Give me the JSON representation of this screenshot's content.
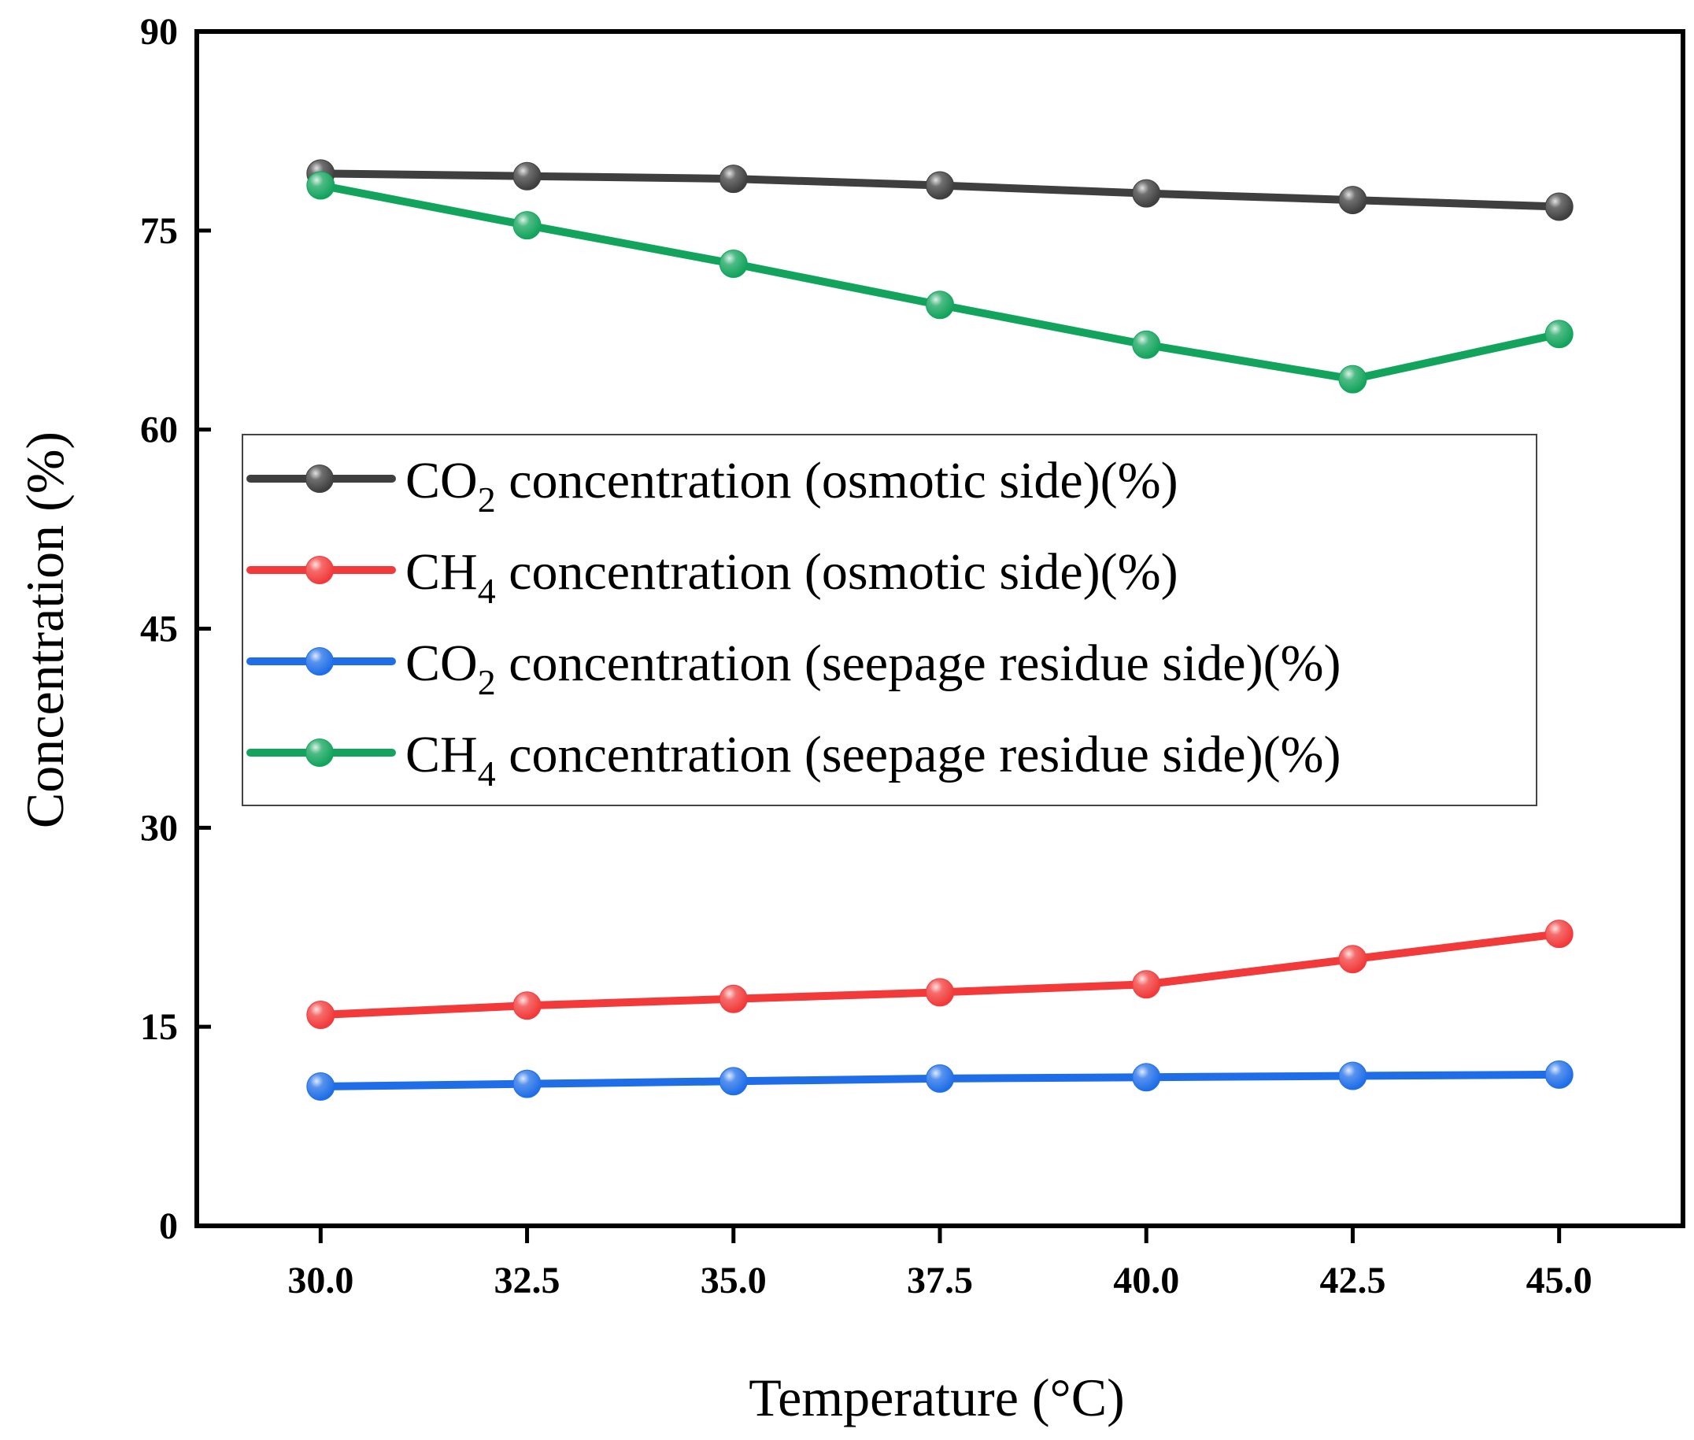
{
  "chart_data": {
    "type": "line",
    "title": "",
    "xlabel": "Temperature (°C)",
    "ylabel": "Concentration (%)",
    "x": [
      30.0,
      32.5,
      35.0,
      37.5,
      40.0,
      42.5,
      45.0
    ],
    "x_tick_labels": [
      "30.0",
      "32.5",
      "35.0",
      "37.5",
      "40.0",
      "42.5",
      "45.0"
    ],
    "xlim": [
      28.5,
      46.5
    ],
    "ylim": [
      0,
      90
    ],
    "y_ticks": [
      0,
      15,
      30,
      45,
      60,
      75,
      90
    ],
    "y_tick_labels": [
      "0",
      "15",
      "30",
      "45",
      "60",
      "75",
      "90"
    ],
    "grid": false,
    "legend_position": "middle-left",
    "series": [
      {
        "name_main": "CO",
        "name_sub": "2",
        "name_rest": " concentration (osmotic side)(%)",
        "color": "#3f3f3f",
        "values": [
          79.3,
          79.1,
          78.9,
          78.4,
          77.8,
          77.3,
          76.8
        ]
      },
      {
        "name_main": "CH",
        "name_sub": "4",
        "name_rest": " concentration (osmotic side)(%)",
        "color": "#f23a3a",
        "values": [
          15.9,
          16.6,
          17.1,
          17.6,
          18.2,
          20.1,
          22.0
        ]
      },
      {
        "name_main": "CO",
        "name_sub": "2",
        "name_rest": " concentration (seepage residue side)(%)",
        "color": "#1f6ee8",
        "values": [
          10.5,
          10.7,
          10.9,
          11.1,
          11.2,
          11.3,
          11.4
        ]
      },
      {
        "name_main": "CH",
        "name_sub": "4",
        "name_rest": " concentration (seepage residue side)(%)",
        "color": "#12a45c",
        "values": [
          78.4,
          75.4,
          72.5,
          69.4,
          66.4,
          63.8,
          67.2
        ]
      }
    ]
  }
}
